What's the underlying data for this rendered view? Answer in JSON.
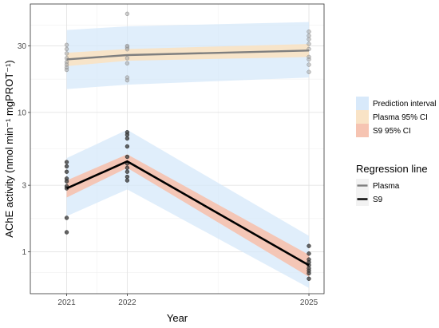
{
  "chart_data": {
    "type": "line",
    "xlabel": "Year",
    "ylabel": "AChE activity (nmol min⁻¹ mgPROT⁻¹)",
    "x_ticks": [
      2021,
      2022,
      2025
    ],
    "xlim": [
      2020.4,
      2025.25
    ],
    "y_scale": "log",
    "y_ticks": [
      1,
      3,
      10,
      30
    ],
    "ylim": [
      0.5,
      60
    ],
    "grid": true,
    "legend_placement": "right",
    "colors": {
      "prediction_fill": "#d6e8fa",
      "plasma_ci_fill": "#f9e2c3",
      "s9_ci_fill": "#f6c1ae",
      "plasma_line": "#7f7f7f",
      "s9_line": "#000000",
      "plasma_points": "#a6a6a6",
      "s9_points": "#404040"
    },
    "ribbon_legend": {
      "title": "",
      "items": [
        {
          "label": "Prediction interval",
          "key": "prediction"
        },
        {
          "label": "Plasma 95% CI",
          "key": "plasma_ci"
        },
        {
          "label": "S9 95% CI",
          "key": "s9_ci"
        }
      ]
    },
    "line_legend": {
      "title": "Regression line",
      "items": [
        {
          "label": "Plasma",
          "key": "plasma"
        },
        {
          "label": "S9",
          "key": "s9"
        }
      ]
    },
    "series": [
      {
        "name": "Plasma",
        "line": [
          {
            "x": 2021,
            "y": 24.0
          },
          {
            "x": 2022,
            "y": 25.8
          },
          {
            "x": 2025,
            "y": 27.8
          }
        ],
        "ci_lower": [
          {
            "x": 2021,
            "y": 21.5
          },
          {
            "x": 2022,
            "y": 23.5
          },
          {
            "x": 2025,
            "y": 25.0
          }
        ],
        "ci_upper": [
          {
            "x": 2021,
            "y": 26.8
          },
          {
            "x": 2022,
            "y": 28.5
          },
          {
            "x": 2025,
            "y": 31.0
          }
        ],
        "pi_lower": [
          {
            "x": 2021,
            "y": 14.7
          },
          {
            "x": 2022,
            "y": 15.8
          },
          {
            "x": 2025,
            "y": 17.8
          }
        ],
        "pi_upper": [
          {
            "x": 2021,
            "y": 39.0
          },
          {
            "x": 2022,
            "y": 41.5
          },
          {
            "x": 2025,
            "y": 44.5
          }
        ],
        "points": [
          {
            "x": 2021,
            "y": 30.5
          },
          {
            "x": 2021,
            "y": 28.5
          },
          {
            "x": 2021,
            "y": 26.5
          },
          {
            "x": 2021,
            "y": 24.5
          },
          {
            "x": 2021,
            "y": 23.0
          },
          {
            "x": 2021,
            "y": 22.0
          },
          {
            "x": 2021,
            "y": 21.0
          },
          {
            "x": 2021,
            "y": 20.2
          },
          {
            "x": 2022,
            "y": 51.0
          },
          {
            "x": 2022,
            "y": 30.0
          },
          {
            "x": 2022,
            "y": 29.3
          },
          {
            "x": 2022,
            "y": 28.4
          },
          {
            "x": 2022,
            "y": 24.5
          },
          {
            "x": 2022,
            "y": 22.5
          },
          {
            "x": 2022,
            "y": 17.8
          },
          {
            "x": 2022,
            "y": 17.0
          },
          {
            "x": 2025,
            "y": 38.0
          },
          {
            "x": 2025,
            "y": 35.5
          },
          {
            "x": 2025,
            "y": 33.5
          },
          {
            "x": 2025,
            "y": 31.0
          },
          {
            "x": 2025,
            "y": 28.5
          },
          {
            "x": 2025,
            "y": 25.0
          },
          {
            "x": 2025,
            "y": 24.0
          },
          {
            "x": 2025,
            "y": 22.0
          },
          {
            "x": 2025,
            "y": 19.5
          }
        ]
      },
      {
        "name": "S9",
        "line": [
          {
            "x": 2021,
            "y": 2.85
          },
          {
            "x": 2022,
            "y": 4.45
          },
          {
            "x": 2025,
            "y": 0.8
          }
        ],
        "ci_lower": [
          {
            "x": 2021,
            "y": 2.45
          },
          {
            "x": 2022,
            "y": 4.0
          },
          {
            "x": 2025,
            "y": 0.66
          }
        ],
        "ci_upper": [
          {
            "x": 2021,
            "y": 3.25
          },
          {
            "x": 2022,
            "y": 5.0
          },
          {
            "x": 2025,
            "y": 0.95
          }
        ],
        "pi_lower": [
          {
            "x": 2021,
            "y": 1.8
          },
          {
            "x": 2022,
            "y": 2.8
          },
          {
            "x": 2025,
            "y": 0.55
          }
        ],
        "pi_upper": [
          {
            "x": 2021,
            "y": 4.7
          },
          {
            "x": 2022,
            "y": 7.5
          },
          {
            "x": 2025,
            "y": 1.3
          }
        ],
        "points": [
          {
            "x": 2021,
            "y": 4.4
          },
          {
            "x": 2021,
            "y": 4.1
          },
          {
            "x": 2021,
            "y": 3.75
          },
          {
            "x": 2021,
            "y": 3.35
          },
          {
            "x": 2021,
            "y": 3.2
          },
          {
            "x": 2021,
            "y": 2.95
          },
          {
            "x": 2021,
            "y": 2.85
          },
          {
            "x": 2021,
            "y": 1.75
          },
          {
            "x": 2021,
            "y": 1.38
          },
          {
            "x": 2022,
            "y": 7.2
          },
          {
            "x": 2022,
            "y": 6.9
          },
          {
            "x": 2022,
            "y": 6.5
          },
          {
            "x": 2022,
            "y": 5.7
          },
          {
            "x": 2022,
            "y": 4.8
          },
          {
            "x": 2022,
            "y": 4.3
          },
          {
            "x": 2022,
            "y": 4.0
          },
          {
            "x": 2022,
            "y": 3.75
          },
          {
            "x": 2022,
            "y": 3.45
          },
          {
            "x": 2022,
            "y": 3.25
          },
          {
            "x": 2025,
            "y": 1.1
          },
          {
            "x": 2025,
            "y": 0.97
          },
          {
            "x": 2025,
            "y": 0.88
          },
          {
            "x": 2025,
            "y": 0.84
          },
          {
            "x": 2025,
            "y": 0.8
          },
          {
            "x": 2025,
            "y": 0.76
          },
          {
            "x": 2025,
            "y": 0.73
          },
          {
            "x": 2025,
            "y": 0.7
          },
          {
            "x": 2025,
            "y": 0.64
          }
        ]
      }
    ]
  }
}
